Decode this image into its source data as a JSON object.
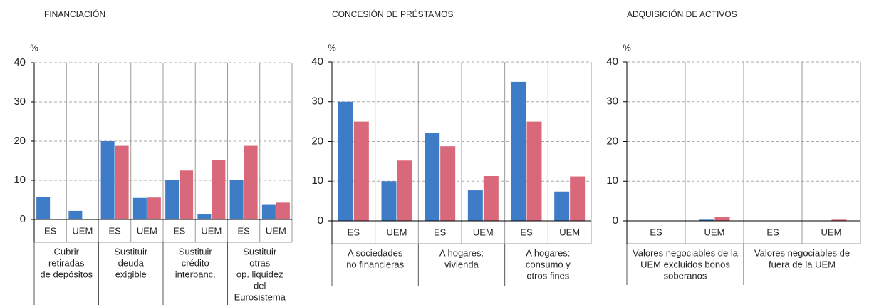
{
  "chart_data": [
    {
      "type": "bar",
      "title": "FINANCIACIÓN",
      "y_label": "%",
      "categories": [
        "ES",
        "UEM",
        "ES",
        "UEM",
        "ES",
        "UEM",
        "ES",
        "UEM"
      ],
      "groups": [
        [
          "Cubrir",
          "retiradas",
          "de depósitos"
        ],
        [
          "Sustituir",
          "deuda",
          "exigible"
        ],
        [
          "Sustituir",
          "crédito",
          "interbanc."
        ],
        [
          "Sustituir",
          "otras",
          "op. liquidez",
          "del",
          "Eurosistema"
        ]
      ],
      "series": [
        {
          "color": "#3f7cc7",
          "values": [
            5.7,
            2.2,
            20,
            5.5,
            10,
            1.4,
            10,
            3.9
          ]
        },
        {
          "color": "#d9687a",
          "values": [
            0,
            0,
            18.8,
            5.6,
            12.5,
            15.2,
            18.8,
            4.3
          ]
        }
      ],
      "ylim": [
        0,
        40
      ],
      "yticks": [
        0,
        10,
        20,
        30,
        40
      ],
      "grid": true
    },
    {
      "type": "bar",
      "title": "CONCESIÓN DE PRÉSTAMOS",
      "y_label": "%",
      "categories": [
        "ES",
        "UEM",
        "ES",
        "UEM",
        "ES",
        "UEM"
      ],
      "groups": [
        [
          "A sociedades",
          "no financieras"
        ],
        [
          "A hogares:",
          "vivienda"
        ],
        [
          "A hogares:",
          "consumo y",
          "otros fines"
        ]
      ],
      "series": [
        {
          "color": "#3f7cc7",
          "values": [
            30,
            10,
            22.2,
            7.7,
            35,
            7.4
          ]
        },
        {
          "color": "#d9687a",
          "values": [
            25,
            15.2,
            18.8,
            11.3,
            25,
            11.2
          ]
        }
      ],
      "ylim": [
        0,
        40
      ],
      "yticks": [
        0,
        10,
        20,
        30,
        40
      ],
      "grid": true
    },
    {
      "type": "bar",
      "title": "ADQUISICIÓN DE ACTIVOS",
      "y_label": "%",
      "categories": [
        "ES",
        "UEM",
        "ES",
        "UEM"
      ],
      "groups": [
        [
          "Valores negociables de la",
          "UEM excluidos bonos",
          "soberanos"
        ],
        [
          "Valores negociables de",
          "fuera de la UEM"
        ]
      ],
      "series": [
        {
          "color": "#3f7cc7",
          "values": [
            0,
            0.3,
            0,
            0
          ]
        },
        {
          "color": "#d9687a",
          "values": [
            0,
            0.9,
            0,
            0.3
          ]
        }
      ],
      "ylim": [
        0,
        40
      ],
      "yticks": [
        0,
        10,
        20,
        30,
        40
      ],
      "grid": true
    }
  ]
}
